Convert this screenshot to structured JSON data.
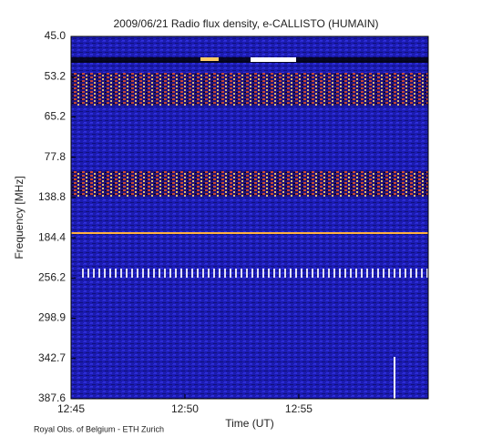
{
  "chart_data": {
    "type": "spectrogram",
    "title": "2009/06/21  Radio flux density, e-CALLISTO (HUMAIN)",
    "x_label": "Time (UT)",
    "y_label": "Frequency [MHz]",
    "footer": "Royal Obs. of Belgium - ETH Zurich",
    "xlim": [
      "12:45",
      "13:00:41"
    ],
    "xticks": [
      "12:45",
      "12:50",
      "12:55"
    ],
    "ylim": [
      45,
      387.6
    ],
    "yticks": [
      {
        "value": 45,
        "label": "45.0"
      },
      53.2,
      65.2,
      77.8,
      138.8,
      184.4,
      256.2,
      298.9,
      342.7,
      387.6
    ]
  }
}
